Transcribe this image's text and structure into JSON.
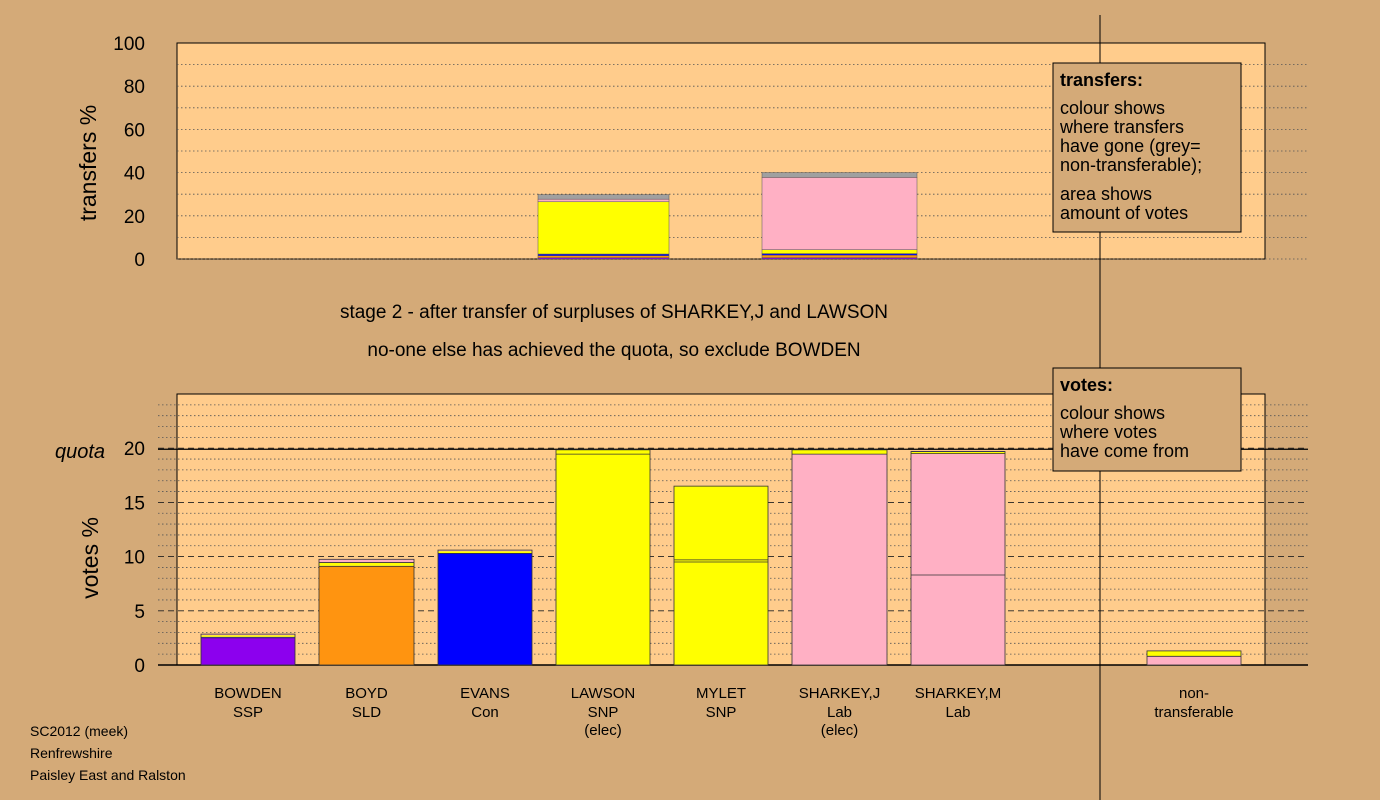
{
  "colors": {
    "background": "#d4aa78",
    "plot_background": "#ffcc8c",
    "SSP": "#8c00ee",
    "SLD": "#ff9410",
    "Con": "#0000ff",
    "SNP": "#ffff00",
    "Lab": "#ffb0c4",
    "nontransferable": "#a0a0a0"
  },
  "stage": {
    "line1": "stage 2 - after transfer of surpluses of SHARKEY,J and LAWSON",
    "line2": "no-one else has achieved the quota, so exclude BOWDEN"
  },
  "footer": {
    "line1": "SC2012 (meek)",
    "line2": "Renfrewshire",
    "line3": "Paisley East and Ralston"
  },
  "legend_transfers": {
    "title": "transfers:",
    "lines1": [
      "colour shows",
      "where transfers",
      "have gone (grey=",
      "non-transferable);"
    ],
    "lines2": [
      "area shows",
      "amount of votes"
    ]
  },
  "legend_votes": {
    "title": "votes:",
    "lines": [
      "colour shows",
      "where votes",
      "have come from"
    ]
  },
  "chart_data": [
    {
      "type": "bar",
      "ylabel": "transfers %",
      "ylim": [
        0,
        100
      ],
      "yticks": [
        0,
        20,
        40,
        60,
        80,
        100
      ],
      "note": "stacked transfer bars",
      "bars": [
        {
          "category": "LAWSON",
          "segments": [
            {
              "party": "SSP",
              "value": 0.6
            },
            {
              "party": "SLD",
              "value": 0.9
            },
            {
              "party": "Con",
              "value": 0.8
            },
            {
              "party": "SNP",
              "value": 24.2
            },
            {
              "party": "Lab",
              "value": 1.2
            },
            {
              "party": "nontransferable",
              "value": 2.1
            }
          ]
        },
        {
          "category": "SHARKEY,J",
          "segments": [
            {
              "party": "SSP",
              "value": 0.6
            },
            {
              "party": "SLD",
              "value": 1.2
            },
            {
              "party": "Con",
              "value": 0.7
            },
            {
              "party": "SNP",
              "value": 1.8
            },
            {
              "party": "Lab",
              "value": 33.5
            },
            {
              "party": "nontransferable",
              "value": 2.2
            }
          ]
        }
      ]
    },
    {
      "type": "bar",
      "ylabel": "votes %",
      "ylim": [
        0,
        25
      ],
      "yticks": [
        0,
        5,
        10,
        15,
        20
      ],
      "quota": 19.9,
      "quota_label": "quota",
      "categories": [
        {
          "name": "BOWDEN",
          "party": "SSP",
          "note": ""
        },
        {
          "name": "BOYD",
          "party": "SLD",
          "note": ""
        },
        {
          "name": "EVANS",
          "party": "Con",
          "note": ""
        },
        {
          "name": "LAWSON",
          "party": "SNP",
          "note": "(elec)"
        },
        {
          "name": "MYLET",
          "party": "SNP",
          "note": ""
        },
        {
          "name": "SHARKEY,J",
          "party": "Lab",
          "note": "(elec)"
        },
        {
          "name": "SHARKEY,M",
          "party": "Lab",
          "note": ""
        },
        {
          "name": "non-",
          "party": "transferable",
          "note": ""
        }
      ],
      "bars": [
        {
          "segments": [
            {
              "party": "SSP",
              "value": 2.5
            },
            {
              "party": "SLD",
              "value": 0.05
            },
            {
              "party": "Con",
              "value": 0.05
            },
            {
              "party": "SNP",
              "value": 0.15
            },
            {
              "party": "Lab",
              "value": 0.1
            }
          ],
          "dividers": [
            2.5
          ]
        },
        {
          "segments": [
            {
              "party": "SLD",
              "value": 9.1
            },
            {
              "party": "Con",
              "value": 0.05
            },
            {
              "party": "SNP",
              "value": 0.3
            },
            {
              "party": "Lab",
              "value": 0.3
            }
          ],
          "dividers": [
            9.1,
            9.45
          ]
        },
        {
          "segments": [
            {
              "party": "Con",
              "value": 10.3
            },
            {
              "party": "SNP",
              "value": 0.2
            },
            {
              "party": "Lab",
              "value": 0.1
            }
          ],
          "dividers": [
            10.3
          ]
        },
        {
          "segments": [
            {
              "party": "SNP",
              "value": 19.85
            }
          ],
          "dividers": [
            19.45
          ]
        },
        {
          "segments": [
            {
              "party": "SNP",
              "value": 16.5
            }
          ],
          "dividers": [
            9.5,
            9.7
          ]
        },
        {
          "segments": [
            {
              "party": "Lab",
              "value": 19.45
            },
            {
              "party": "SNP",
              "value": 0.4
            }
          ],
          "dividers": [
            19.45
          ]
        },
        {
          "segments": [
            {
              "party": "Lab",
              "value": 19.5
            },
            {
              "party": "SNP",
              "value": 0.15
            },
            {
              "party": "Con",
              "value": 0.05
            }
          ],
          "dividers": [
            8.3,
            19.5
          ]
        },
        {
          "segments": [
            {
              "party": "Lab",
              "value": 0.8
            },
            {
              "party": "SNP",
              "value": 0.5
            }
          ],
          "dividers": [
            0.8
          ]
        }
      ]
    }
  ]
}
